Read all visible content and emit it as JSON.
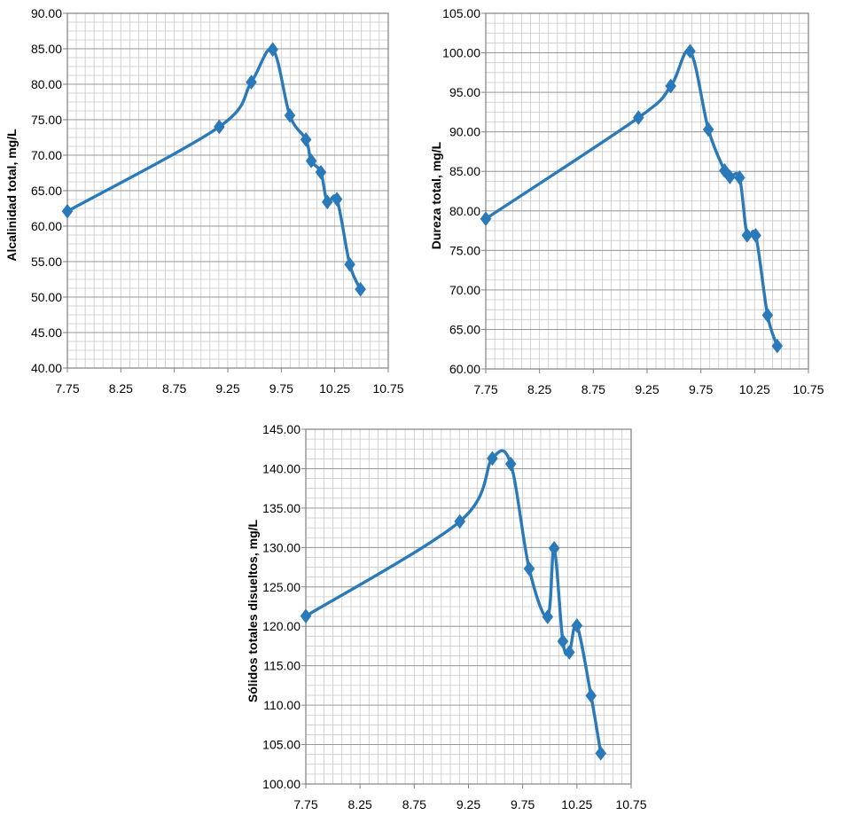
{
  "series_color": "#2a7ab9",
  "chart_data": [
    {
      "type": "line",
      "ylabel": "Alcalinidad  total, mg/L",
      "xlim": [
        7.75,
        10.75
      ],
      "ylim": [
        40,
        90
      ],
      "xticks": [
        "7.75",
        "8.25",
        "8.75",
        "9.25",
        "9.75",
        "10.25",
        "10.75"
      ],
      "yticks": [
        "40.00",
        "45.00",
        "50.00",
        "55.00",
        "60.00",
        "65.00",
        "70.00",
        "75.00",
        "80.00",
        "85.00",
        "90.00"
      ],
      "x": [
        7.75,
        9.17,
        9.47,
        9.67,
        9.83,
        9.98,
        10.03,
        10.12,
        10.18,
        10.27,
        10.39,
        10.49
      ],
      "y": [
        62.1,
        74.0,
        80.3,
        84.9,
        75.6,
        72.2,
        69.2,
        67.6,
        63.4,
        63.8,
        54.6,
        51.1
      ],
      "minor_x": 0.0833,
      "minor_y": 1.25
    },
    {
      "type": "line",
      "ylabel": "Dureza total, mg/L",
      "xlim": [
        7.75,
        10.75
      ],
      "ylim": [
        60,
        105
      ],
      "xticks": [
        "7.75",
        "8.25",
        "8.75",
        "9.25",
        "9.75",
        "10.25",
        "10.75"
      ],
      "yticks": [
        "60.00",
        "65.00",
        "70.00",
        "75.00",
        "80.00",
        "85.00",
        "90.00",
        "95.00",
        "100.00",
        "105.00"
      ],
      "x": [
        7.75,
        9.17,
        9.47,
        9.65,
        9.82,
        9.97,
        10.02,
        10.11,
        10.18,
        10.26,
        10.37,
        10.46
      ],
      "y": [
        79.0,
        91.8,
        95.8,
        100.2,
        90.3,
        85.1,
        84.3,
        84.2,
        76.9,
        76.9,
        66.8,
        62.9
      ],
      "minor_x": 0.0833,
      "minor_y": 1.25
    },
    {
      "type": "line",
      "ylabel": "Sólidos totales disueltos, mg/L",
      "xlim": [
        7.75,
        10.75
      ],
      "ylim": [
        100,
        145
      ],
      "xticks": [
        "7.75",
        "8.25",
        "8.75",
        "9.25",
        "9.75",
        "10.25",
        "10.75"
      ],
      "yticks": [
        "100.00",
        "105.00",
        "110.00",
        "115.00",
        "120.00",
        "125.00",
        "130.00",
        "135.00",
        "140.00",
        "145.00"
      ],
      "x": [
        7.75,
        9.17,
        9.47,
        9.64,
        9.81,
        9.98,
        10.04,
        10.12,
        10.18,
        10.25,
        10.38,
        10.47
      ],
      "y": [
        121.3,
        133.3,
        141.3,
        140.6,
        127.3,
        121.2,
        129.9,
        118.1,
        116.7,
        120.1,
        111.2,
        103.9
      ],
      "minor_x": 0.0833,
      "minor_y": 1.25
    }
  ]
}
